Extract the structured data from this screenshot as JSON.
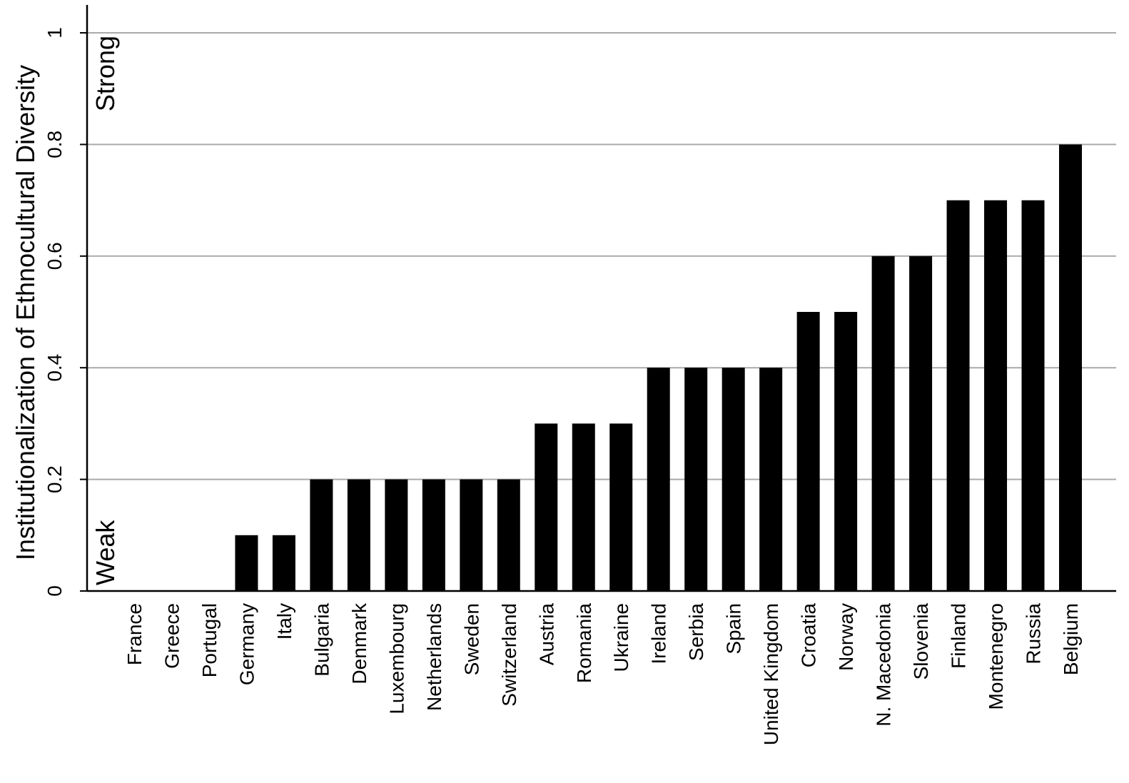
{
  "chart_data": {
    "type": "bar",
    "y_label": "Institutionalization of Ethnocultural Diversity",
    "annotations": [
      "Strong",
      "Weak"
    ],
    "categories": [
      "France",
      "Greece",
      "Portugal",
      "Germany",
      "Italy",
      "Bulgaria",
      "Denmark",
      "Luxembourg",
      "Netherlands",
      "Sweden",
      "Switzerland",
      "Austria",
      "Romania",
      "Ukraine",
      "Ireland",
      "Serbia",
      "Spain",
      "United Kingdom",
      "Croatia",
      "Norway",
      "N. Macedonia",
      "Slovenia",
      "Finland",
      "Montenegro",
      "Russia",
      "Belgium"
    ],
    "values": [
      0,
      0,
      0,
      0.1,
      0.1,
      0.2,
      0.2,
      0.2,
      0.2,
      0.2,
      0.2,
      0.3,
      0.3,
      0.3,
      0.4,
      0.4,
      0.4,
      0.4,
      0.5,
      0.5,
      0.6,
      0.6,
      0.7,
      0.7,
      0.7,
      0.8
    ],
    "color": "#000000",
    "ylim": [
      0,
      1.05
    ],
    "yticks": [
      0,
      0.2,
      0.4,
      0.6,
      0.8,
      1
    ],
    "grid": true
  }
}
